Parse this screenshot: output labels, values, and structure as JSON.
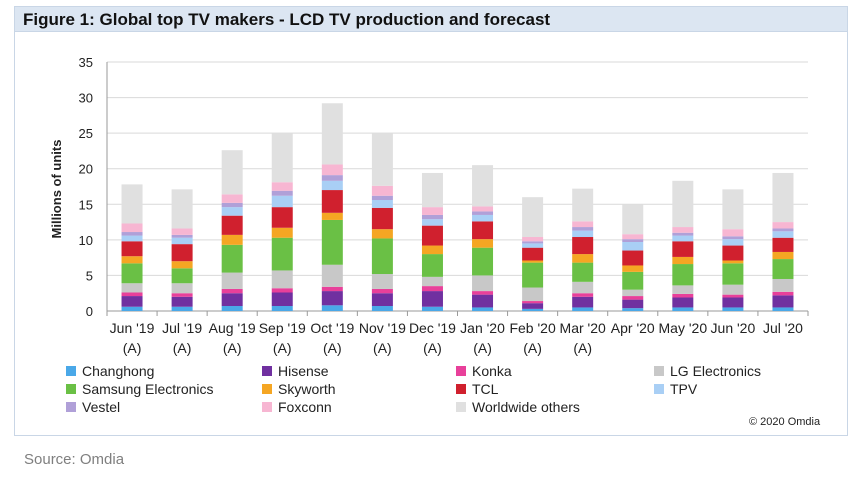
{
  "figure_title": "Figure 1: Global top TV makers - LCD TV production and forecast",
  "source": "Source: Omdia",
  "copyright": "© 2020 Omdia",
  "chart_data": {
    "type": "bar",
    "stacked": true,
    "title": "Figure 1: Global top TV makers - LCD TV production and forecast",
    "xlabel": "",
    "ylabel": "Millions of units",
    "ylim": [
      0,
      35
    ],
    "yticks": [
      0,
      5,
      10,
      15,
      20,
      25,
      30,
      35
    ],
    "grid": true,
    "legend_position": "bottom",
    "categories": [
      {
        "line1": "Jun '19",
        "line2": "(A)"
      },
      {
        "line1": "Jul '19",
        "line2": "(A)"
      },
      {
        "line1": "Aug '19",
        "line2": "(A)"
      },
      {
        "line1": "Sep '19",
        "line2": "(A)"
      },
      {
        "line1": "Oct '19",
        "line2": "(A)"
      },
      {
        "line1": "Nov '19",
        "line2": "(A)"
      },
      {
        "line1": "Dec '19",
        "line2": "(A)"
      },
      {
        "line1": "Jan '20",
        "line2": "(A)"
      },
      {
        "line1": "Feb '20",
        "line2": "(A)"
      },
      {
        "line1": "Mar '20",
        "line2": "(A)"
      },
      {
        "line1": "Apr '20",
        "line2": ""
      },
      {
        "line1": "May '20",
        "line2": ""
      },
      {
        "line1": "Jun '20",
        "line2": ""
      },
      {
        "line1": "Jul '20",
        "line2": ""
      }
    ],
    "series": [
      {
        "name": "Changhong",
        "color": "#4aa8e8",
        "values": [
          0.6,
          0.6,
          0.7,
          0.7,
          0.8,
          0.7,
          0.6,
          0.5,
          0.3,
          0.5,
          0.4,
          0.5,
          0.5,
          0.5
        ]
      },
      {
        "name": "Hisense",
        "color": "#7030a0",
        "values": [
          1.5,
          1.4,
          1.8,
          1.9,
          2.0,
          1.8,
          2.2,
          1.8,
          0.8,
          1.5,
          1.2,
          1.4,
          1.4,
          1.7
        ]
      },
      {
        "name": "Konka",
        "color": "#e8409a",
        "values": [
          0.5,
          0.5,
          0.6,
          0.6,
          0.6,
          0.6,
          0.7,
          0.5,
          0.3,
          0.5,
          0.5,
          0.5,
          0.4,
          0.5
        ]
      },
      {
        "name": "LG Electronics",
        "color": "#c8c8c8",
        "values": [
          1.3,
          1.4,
          2.3,
          2.5,
          3.1,
          2.1,
          1.3,
          2.2,
          1.9,
          1.6,
          0.9,
          1.2,
          1.4,
          1.8
        ]
      },
      {
        "name": "Samsung Electronics",
        "color": "#6ac045",
        "values": [
          2.8,
          2.1,
          3.9,
          4.6,
          6.3,
          5.0,
          3.2,
          3.9,
          3.5,
          2.7,
          2.5,
          3.0,
          3.0,
          2.8
        ]
      },
      {
        "name": "Skyworth",
        "color": "#f5a623",
        "values": [
          1.0,
          1.0,
          1.4,
          1.4,
          1.0,
          1.3,
          1.2,
          1.2,
          0.3,
          1.2,
          0.9,
          1.0,
          0.4,
          1.0
        ]
      },
      {
        "name": "TCL",
        "color": "#d0202e",
        "values": [
          2.1,
          2.4,
          2.7,
          2.9,
          3.2,
          3.0,
          2.8,
          2.5,
          1.8,
          2.4,
          2.1,
          2.2,
          2.1,
          2.0
        ]
      },
      {
        "name": "TPV",
        "color": "#a9cff5",
        "values": [
          0.8,
          0.9,
          1.2,
          1.6,
          1.3,
          1.1,
          0.9,
          0.9,
          0.6,
          0.9,
          1.2,
          0.8,
          0.9,
          0.9
        ]
      },
      {
        "name": "Vestel",
        "color": "#b0a0d8",
        "values": [
          0.5,
          0.4,
          0.6,
          0.7,
          0.8,
          0.6,
          0.6,
          0.5,
          0.3,
          0.5,
          0.4,
          0.4,
          0.4,
          0.4
        ]
      },
      {
        "name": "Foxconn",
        "color": "#f7b6d2",
        "values": [
          1.2,
          0.9,
          1.2,
          1.2,
          1.5,
          1.4,
          1.1,
          0.7,
          0.6,
          0.8,
          0.7,
          0.8,
          1.0,
          0.9
        ]
      },
      {
        "name": "Worldwide others",
        "color": "#e0e0e0",
        "values": [
          5.5,
          5.5,
          6.2,
          6.9,
          8.6,
          7.4,
          4.8,
          5.8,
          5.6,
          4.6,
          4.2,
          6.5,
          5.6,
          6.9
        ]
      }
    ]
  }
}
